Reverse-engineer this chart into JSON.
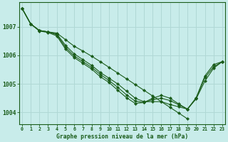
{
  "title": "Graphe pression niveau de la mer (hPa)",
  "background_color": "#c8ecea",
  "grid_color": "#b0d8d5",
  "line_color": "#1a5c1a",
  "xlim": [
    -0.3,
    23.3
  ],
  "ylim": [
    1003.6,
    1007.85
  ],
  "yticks": [
    1004,
    1005,
    1006,
    1007
  ],
  "xticks": [
    0,
    1,
    2,
    3,
    4,
    5,
    6,
    7,
    8,
    9,
    10,
    11,
    12,
    13,
    14,
    15,
    16,
    17,
    18,
    19,
    20,
    21,
    22,
    23
  ],
  "lines": [
    {
      "x": [
        0,
        1,
        2,
        3,
        4,
        5,
        6,
        7,
        8,
        9,
        10,
        11,
        12,
        13,
        14,
        15,
        16,
        17,
        18,
        19,
        20,
        21,
        22,
        23
      ],
      "y": [
        1007.65,
        1007.1,
        1006.87,
        1006.82,
        1006.78,
        1006.55,
        1006.32,
        1006.15,
        1005.97,
        1005.78,
        1005.58,
        1005.38,
        1005.18,
        1004.98,
        1004.78,
        1004.58,
        1004.38,
        1004.18,
        1003.98,
        1003.78,
        null,
        null,
        null,
        null
      ]
    },
    {
      "x": [
        0,
        1,
        2,
        3,
        4,
        5,
        6,
        7,
        8,
        9,
        10,
        11,
        12,
        13,
        14,
        15,
        16,
        17,
        18,
        19,
        20,
        21,
        22,
        23
      ],
      "y": [
        1007.65,
        1007.1,
        1006.87,
        1006.82,
        1006.75,
        1006.35,
        1006.05,
        1005.85,
        1005.65,
        1005.4,
        1005.2,
        1005.0,
        1004.75,
        1004.5,
        1004.38,
        1004.38,
        1004.38,
        1004.28,
        1004.2,
        1004.12,
        1004.48,
        1005.1,
        1005.55,
        1005.78
      ]
    },
    {
      "x": [
        0,
        1,
        2,
        3,
        4,
        5,
        6,
        7,
        8,
        9,
        10,
        11,
        12,
        13,
        14,
        15,
        16,
        17,
        18,
        19,
        20,
        21,
        22,
        23
      ],
      "y": [
        1007.65,
        1007.1,
        1006.87,
        1006.82,
        1006.72,
        1006.28,
        1005.98,
        1005.78,
        1005.58,
        1005.33,
        1005.12,
        1004.88,
        1004.62,
        1004.4,
        1004.35,
        1004.45,
        1004.5,
        1004.42,
        1004.27,
        1004.12,
        1004.5,
        1005.22,
        1005.6,
        1005.78
      ]
    },
    {
      "x": [
        0,
        1,
        2,
        3,
        4,
        5,
        6,
        7,
        8,
        9,
        10,
        11,
        12,
        13,
        14,
        15,
        16,
        17,
        18,
        19,
        20,
        21,
        22,
        23
      ],
      "y": [
        1007.65,
        1007.1,
        1006.85,
        1006.8,
        1006.68,
        1006.22,
        1005.92,
        1005.72,
        1005.52,
        1005.25,
        1005.05,
        1004.78,
        1004.52,
        1004.32,
        1004.35,
        1004.5,
        1004.6,
        1004.5,
        1004.3,
        1004.12,
        1004.52,
        1005.28,
        1005.68,
        1005.78
      ]
    }
  ]
}
